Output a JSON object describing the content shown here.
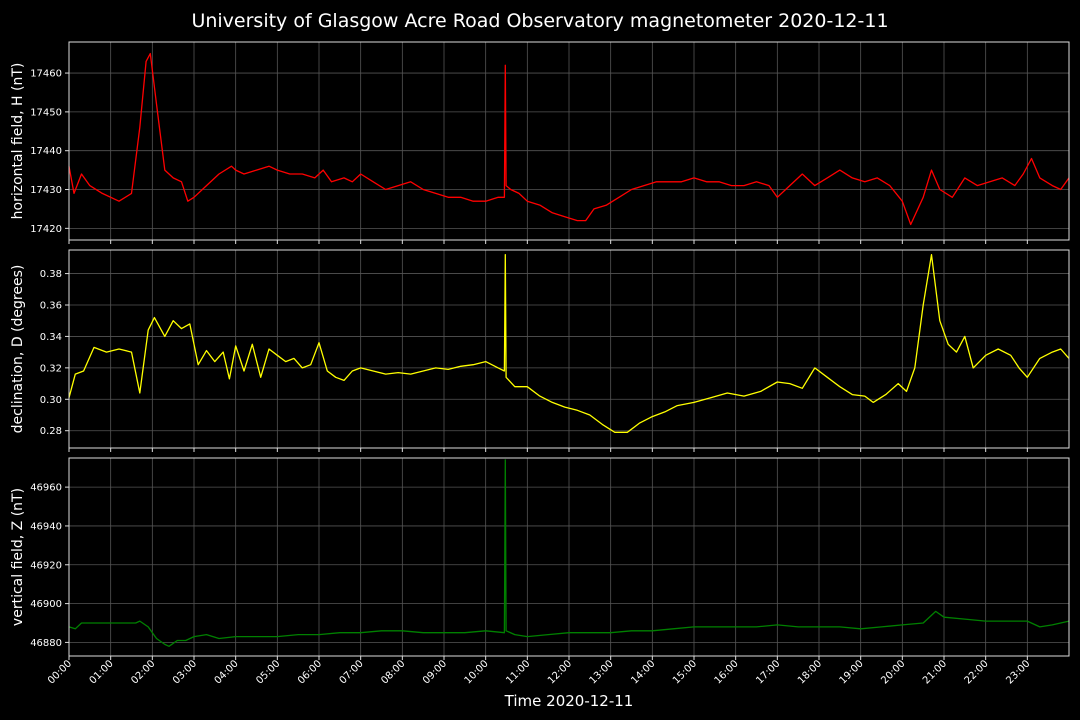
{
  "chart_data": {
    "type": "line",
    "title": "University of Glasgow Acre Road Observatory magnetometer 2020-12-11",
    "xlabel": "Time 2020-12-11",
    "x_unit": "hours",
    "xlim": [
      0,
      24
    ],
    "x_tick_labels": [
      "00:00",
      "01:00",
      "02:00",
      "03:00",
      "04:00",
      "05:00",
      "06:00",
      "07:00",
      "08:00",
      "09:00",
      "10:00",
      "11:00",
      "12:00",
      "13:00",
      "14:00",
      "15:00",
      "16:00",
      "17:00",
      "18:00",
      "19:00",
      "20:00",
      "21:00",
      "22:00",
      "23:00"
    ],
    "grid": true,
    "background": "#000000",
    "panels": [
      {
        "ylabel": "horizontal field, H (nT)",
        "color": "#ff0000",
        "ylim": [
          17417,
          17468
        ],
        "yticks": [
          17420,
          17430,
          17440,
          17450,
          17460
        ],
        "points": [
          [
            0,
            17436
          ],
          [
            0.12,
            17429
          ],
          [
            0.3,
            17434
          ],
          [
            0.5,
            17431
          ],
          [
            0.8,
            17429
          ],
          [
            1.2,
            17427
          ],
          [
            1.5,
            17429
          ],
          [
            1.7,
            17446
          ],
          [
            1.85,
            17463
          ],
          [
            1.95,
            17465
          ],
          [
            2.1,
            17452
          ],
          [
            2.3,
            17435
          ],
          [
            2.5,
            17433
          ],
          [
            2.7,
            17432
          ],
          [
            2.85,
            17427
          ],
          [
            3.0,
            17428
          ],
          [
            3.3,
            17431
          ],
          [
            3.6,
            17434
          ],
          [
            3.9,
            17436
          ],
          [
            4.0,
            17435
          ],
          [
            4.2,
            17434
          ],
          [
            4.5,
            17435
          ],
          [
            4.8,
            17436
          ],
          [
            5.0,
            17435
          ],
          [
            5.3,
            17434
          ],
          [
            5.6,
            17434
          ],
          [
            5.9,
            17433
          ],
          [
            6.1,
            17435
          ],
          [
            6.3,
            17432
          ],
          [
            6.6,
            17433
          ],
          [
            6.8,
            17432
          ],
          [
            7.0,
            17434
          ],
          [
            7.3,
            17432
          ],
          [
            7.6,
            17430
          ],
          [
            7.9,
            17431
          ],
          [
            8.2,
            17432
          ],
          [
            8.5,
            17430
          ],
          [
            8.8,
            17429
          ],
          [
            9.1,
            17428
          ],
          [
            9.4,
            17428
          ],
          [
            9.7,
            17427
          ],
          [
            10.0,
            17427
          ],
          [
            10.3,
            17428
          ],
          [
            10.45,
            17428
          ],
          [
            10.47,
            17462
          ],
          [
            10.49,
            17431
          ],
          [
            10.6,
            17430
          ],
          [
            10.8,
            17429
          ],
          [
            11.0,
            17427
          ],
          [
            11.3,
            17426
          ],
          [
            11.6,
            17424
          ],
          [
            11.9,
            17423
          ],
          [
            12.2,
            17422
          ],
          [
            12.4,
            17422
          ],
          [
            12.6,
            17425
          ],
          [
            12.9,
            17426
          ],
          [
            13.2,
            17428
          ],
          [
            13.5,
            17430
          ],
          [
            13.8,
            17431
          ],
          [
            14.1,
            17432
          ],
          [
            14.4,
            17432
          ],
          [
            14.7,
            17432
          ],
          [
            15.0,
            17433
          ],
          [
            15.3,
            17432
          ],
          [
            15.6,
            17432
          ],
          [
            15.9,
            17431
          ],
          [
            16.2,
            17431
          ],
          [
            16.5,
            17432
          ],
          [
            16.8,
            17431
          ],
          [
            17.0,
            17428
          ],
          [
            17.3,
            17431
          ],
          [
            17.6,
            17434
          ],
          [
            17.9,
            17431
          ],
          [
            18.2,
            17433
          ],
          [
            18.5,
            17435
          ],
          [
            18.8,
            17433
          ],
          [
            19.1,
            17432
          ],
          [
            19.4,
            17433
          ],
          [
            19.7,
            17431
          ],
          [
            20.0,
            17427
          ],
          [
            20.2,
            17421
          ],
          [
            20.5,
            17428
          ],
          [
            20.7,
            17435
          ],
          [
            20.9,
            17430
          ],
          [
            21.2,
            17428
          ],
          [
            21.5,
            17433
          ],
          [
            21.8,
            17431
          ],
          [
            22.1,
            17432
          ],
          [
            22.4,
            17433
          ],
          [
            22.7,
            17431
          ],
          [
            22.9,
            17434
          ],
          [
            23.1,
            17438
          ],
          [
            23.3,
            17433
          ],
          [
            23.6,
            17431
          ],
          [
            23.8,
            17430
          ],
          [
            24.0,
            17433
          ]
        ]
      },
      {
        "ylabel": "declination, D (degrees)",
        "color": "#ffff00",
        "ylim": [
          0.269,
          0.395
        ],
        "yticks": [
          0.28,
          0.3,
          0.32,
          0.34,
          0.36,
          0.38
        ],
        "points": [
          [
            0,
            0.301
          ],
          [
            0.15,
            0.316
          ],
          [
            0.35,
            0.318
          ],
          [
            0.6,
            0.333
          ],
          [
            0.9,
            0.33
          ],
          [
            1.2,
            0.332
          ],
          [
            1.5,
            0.33
          ],
          [
            1.7,
            0.304
          ],
          [
            1.9,
            0.344
          ],
          [
            2.05,
            0.352
          ],
          [
            2.3,
            0.34
          ],
          [
            2.5,
            0.35
          ],
          [
            2.7,
            0.345
          ],
          [
            2.9,
            0.348
          ],
          [
            3.1,
            0.322
          ],
          [
            3.3,
            0.331
          ],
          [
            3.5,
            0.324
          ],
          [
            3.7,
            0.33
          ],
          [
            3.85,
            0.313
          ],
          [
            4.0,
            0.334
          ],
          [
            4.2,
            0.318
          ],
          [
            4.4,
            0.335
          ],
          [
            4.6,
            0.314
          ],
          [
            4.8,
            0.332
          ],
          [
            5.0,
            0.328
          ],
          [
            5.2,
            0.324
          ],
          [
            5.4,
            0.326
          ],
          [
            5.6,
            0.32
          ],
          [
            5.8,
            0.322
          ],
          [
            6.0,
            0.336
          ],
          [
            6.2,
            0.318
          ],
          [
            6.4,
            0.314
          ],
          [
            6.6,
            0.312
          ],
          [
            6.8,
            0.318
          ],
          [
            7.0,
            0.32
          ],
          [
            7.3,
            0.318
          ],
          [
            7.6,
            0.316
          ],
          [
            7.9,
            0.317
          ],
          [
            8.2,
            0.316
          ],
          [
            8.5,
            0.318
          ],
          [
            8.8,
            0.32
          ],
          [
            9.1,
            0.319
          ],
          [
            9.4,
            0.321
          ],
          [
            9.7,
            0.322
          ],
          [
            10.0,
            0.324
          ],
          [
            10.3,
            0.32
          ],
          [
            10.45,
            0.318
          ],
          [
            10.47,
            0.392
          ],
          [
            10.49,
            0.314
          ],
          [
            10.7,
            0.308
          ],
          [
            11.0,
            0.308
          ],
          [
            11.3,
            0.302
          ],
          [
            11.6,
            0.298
          ],
          [
            11.9,
            0.295
          ],
          [
            12.2,
            0.293
          ],
          [
            12.5,
            0.29
          ],
          [
            12.8,
            0.284
          ],
          [
            13.1,
            0.279
          ],
          [
            13.4,
            0.279
          ],
          [
            13.7,
            0.285
          ],
          [
            14.0,
            0.289
          ],
          [
            14.3,
            0.292
          ],
          [
            14.6,
            0.296
          ],
          [
            15.0,
            0.298
          ],
          [
            15.4,
            0.301
          ],
          [
            15.8,
            0.304
          ],
          [
            16.2,
            0.302
          ],
          [
            16.6,
            0.305
          ],
          [
            17.0,
            0.311
          ],
          [
            17.3,
            0.31
          ],
          [
            17.6,
            0.307
          ],
          [
            17.9,
            0.32
          ],
          [
            18.2,
            0.314
          ],
          [
            18.5,
            0.308
          ],
          [
            18.8,
            0.303
          ],
          [
            19.1,
            0.302
          ],
          [
            19.3,
            0.298
          ],
          [
            19.6,
            0.303
          ],
          [
            19.9,
            0.31
          ],
          [
            20.1,
            0.305
          ],
          [
            20.3,
            0.32
          ],
          [
            20.5,
            0.36
          ],
          [
            20.7,
            0.392
          ],
          [
            20.9,
            0.35
          ],
          [
            21.1,
            0.335
          ],
          [
            21.3,
            0.33
          ],
          [
            21.5,
            0.34
          ],
          [
            21.7,
            0.32
          ],
          [
            22.0,
            0.328
          ],
          [
            22.3,
            0.332
          ],
          [
            22.6,
            0.328
          ],
          [
            22.8,
            0.32
          ],
          [
            23.0,
            0.314
          ],
          [
            23.3,
            0.326
          ],
          [
            23.6,
            0.33
          ],
          [
            23.8,
            0.332
          ],
          [
            24.0,
            0.326
          ]
        ]
      },
      {
        "ylabel": "vertical field, Z (nT)",
        "color": "#008000",
        "ylim": [
          46873,
          46975
        ],
        "yticks": [
          46880,
          46900,
          46920,
          46940,
          46960
        ],
        "points": [
          [
            0,
            46888
          ],
          [
            0.15,
            46887
          ],
          [
            0.3,
            46890
          ],
          [
            0.6,
            46890
          ],
          [
            1.0,
            46890
          ],
          [
            1.3,
            46890
          ],
          [
            1.6,
            46890
          ],
          [
            1.7,
            46891
          ],
          [
            1.9,
            46888
          ],
          [
            2.1,
            46882
          ],
          [
            2.3,
            46879
          ],
          [
            2.4,
            46878
          ],
          [
            2.6,
            46881
          ],
          [
            2.8,
            46881
          ],
          [
            3.0,
            46883
          ],
          [
            3.3,
            46884
          ],
          [
            3.6,
            46882
          ],
          [
            4.0,
            46883
          ],
          [
            4.5,
            46883
          ],
          [
            5.0,
            46883
          ],
          [
            5.5,
            46884
          ],
          [
            6.0,
            46884
          ],
          [
            6.5,
            46885
          ],
          [
            7.0,
            46885
          ],
          [
            7.5,
            46886
          ],
          [
            8.0,
            46886
          ],
          [
            8.5,
            46885
          ],
          [
            9.0,
            46885
          ],
          [
            9.5,
            46885
          ],
          [
            10.0,
            46886
          ],
          [
            10.45,
            46885
          ],
          [
            10.47,
            46974
          ],
          [
            10.49,
            46886
          ],
          [
            10.7,
            46884
          ],
          [
            11.0,
            46883
          ],
          [
            11.5,
            46884
          ],
          [
            12.0,
            46885
          ],
          [
            12.5,
            46885
          ],
          [
            13.0,
            46885
          ],
          [
            13.5,
            46886
          ],
          [
            14.0,
            46886
          ],
          [
            14.5,
            46887
          ],
          [
            15.0,
            46888
          ],
          [
            15.5,
            46888
          ],
          [
            16.0,
            46888
          ],
          [
            16.5,
            46888
          ],
          [
            17.0,
            46889
          ],
          [
            17.5,
            46888
          ],
          [
            18.0,
            46888
          ],
          [
            18.5,
            46888
          ],
          [
            19.0,
            46887
          ],
          [
            19.5,
            46888
          ],
          [
            20.0,
            46889
          ],
          [
            20.5,
            46890
          ],
          [
            20.8,
            46896
          ],
          [
            21.0,
            46893
          ],
          [
            21.5,
            46892
          ],
          [
            22.0,
            46891
          ],
          [
            22.5,
            46891
          ],
          [
            23.0,
            46891
          ],
          [
            23.3,
            46888
          ],
          [
            23.6,
            46889
          ],
          [
            24.0,
            46891
          ]
        ]
      }
    ]
  }
}
